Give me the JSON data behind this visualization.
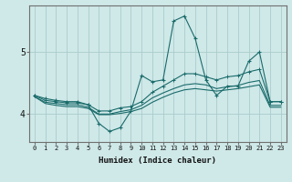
{
  "xlabel": "Humidex (Indice chaleur)",
  "ylabel": "",
  "bg_color": "#cfe8e8",
  "grid_color": "#aacccc",
  "line_color": "#1a6b6b",
  "xlim": [
    -0.5,
    23.5
  ],
  "ylim": [
    3.55,
    5.75
  ],
  "x": [
    0,
    1,
    2,
    3,
    4,
    5,
    6,
    7,
    8,
    9,
    10,
    11,
    12,
    13,
    14,
    15,
    16,
    17,
    18,
    19,
    20,
    21,
    22,
    23
  ],
  "line1": [
    4.3,
    4.25,
    4.22,
    4.2,
    4.2,
    4.15,
    3.85,
    3.72,
    3.78,
    4.05,
    4.62,
    4.52,
    4.55,
    5.5,
    5.58,
    5.22,
    4.55,
    4.3,
    4.45,
    4.45,
    4.85,
    5.0,
    4.2,
    4.2
  ],
  "line2": [
    4.3,
    4.22,
    4.2,
    4.18,
    4.18,
    4.15,
    4.05,
    4.05,
    4.1,
    4.12,
    4.2,
    4.35,
    4.45,
    4.55,
    4.65,
    4.65,
    4.6,
    4.55,
    4.6,
    4.62,
    4.68,
    4.72,
    4.2,
    4.2
  ],
  "line3": [
    4.28,
    4.19,
    4.17,
    4.15,
    4.15,
    4.11,
    4.0,
    4.0,
    4.04,
    4.07,
    4.14,
    4.26,
    4.34,
    4.41,
    4.47,
    4.49,
    4.47,
    4.41,
    4.44,
    4.46,
    4.51,
    4.54,
    4.14,
    4.14
  ],
  "line4": [
    4.28,
    4.17,
    4.14,
    4.12,
    4.12,
    4.09,
    3.99,
    3.99,
    4.01,
    4.04,
    4.09,
    4.19,
    4.27,
    4.34,
    4.39,
    4.41,
    4.39,
    4.37,
    4.39,
    4.41,
    4.44,
    4.47,
    4.11,
    4.11
  ],
  "yticks": [
    4,
    5
  ],
  "xticks": [
    0,
    1,
    2,
    3,
    4,
    5,
    6,
    7,
    8,
    9,
    10,
    11,
    12,
    13,
    14,
    15,
    16,
    17,
    18,
    19,
    20,
    21,
    22,
    23
  ]
}
